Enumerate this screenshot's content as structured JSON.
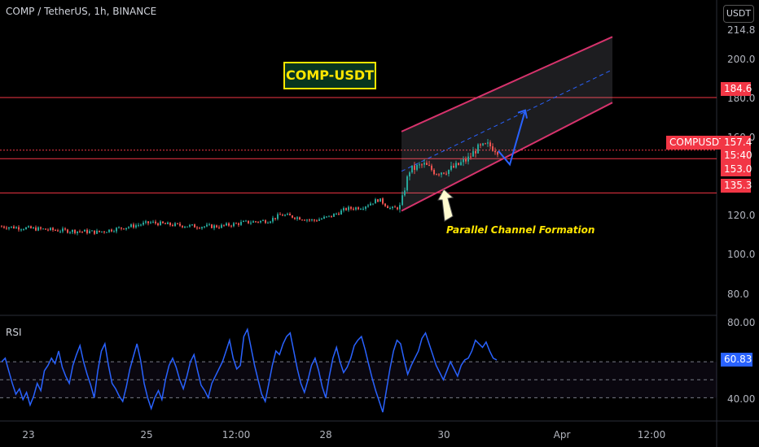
{
  "header": {
    "symbol_line": "COMP / TetherUS, 1h, BINANCE",
    "currency": "USDT"
  },
  "chart_title": "COMP-USDT",
  "annotation": "Parallel Channel Formation",
  "price_axis": {
    "ticks": [
      "214.8",
      "200.0",
      "180.0",
      "160.0",
      "120.0",
      "100.0",
      "80.0"
    ]
  },
  "price_badges": {
    "resistance": "184.6",
    "last": "157.4",
    "symbol": "COMPUSDT",
    "countdown": "15:40",
    "support1": "153.0",
    "support2": "135.3"
  },
  "rsi": {
    "label": "RSI",
    "value": "60.83",
    "ticks": [
      "80.00",
      "40.00"
    ]
  },
  "time_axis": [
    "23",
    "25",
    "12:00",
    "28",
    "30",
    "Apr",
    "12:00"
  ],
  "colors": {
    "up": "#26a69a",
    "down": "#ef5350",
    "rsi": "#2962ff",
    "level": "#f23645",
    "channel": "#d6336c",
    "title_text": "#ffe600"
  },
  "chart_data": [
    {
      "type": "candlestick",
      "title": "COMP / TetherUS, 1h, BINANCE",
      "ylabel": "USDT",
      "ylim": [
        72,
        222
      ],
      "x": [
        "23",
        "25",
        "12:00",
        "28",
        "30",
        "Apr",
        "12:00"
      ],
      "levels": [
        184.6,
        157.4,
        153.0,
        135.3
      ],
      "close_path": [
        [
          0,
          118
        ],
        [
          70,
          116
        ],
        [
          120,
          115
        ],
        [
          160,
          118
        ],
        [
          185,
          120
        ],
        [
          205,
          119
        ],
        [
          240,
          118
        ],
        [
          270,
          118
        ],
        [
          300,
          120
        ],
        [
          330,
          121
        ],
        [
          345,
          124
        ],
        [
          360,
          123
        ],
        [
          385,
          121
        ],
        [
          405,
          123
        ],
        [
          425,
          127
        ],
        [
          445,
          128
        ],
        [
          465,
          132
        ],
        [
          480,
          127
        ],
        [
          492,
          128
        ],
        [
          497,
          138
        ],
        [
          503,
          147
        ],
        [
          520,
          150
        ],
        [
          535,
          146
        ],
        [
          550,
          147
        ],
        [
          560,
          149
        ],
        [
          575,
          153
        ],
        [
          585,
          158
        ],
        [
          600,
          160
        ],
        [
          612,
          157
        ]
      ],
      "projection": {
        "from": [
          626,
          150
        ],
        "to": [
          645,
          178
        ]
      }
    },
    {
      "type": "line",
      "title": "RSI",
      "ylim": [
        28,
        84
      ],
      "levels": [
        60,
        50,
        40
      ],
      "values": [
        60,
        62,
        55,
        48,
        42,
        45,
        39,
        43,
        36,
        41,
        48,
        44,
        55,
        58,
        62,
        59,
        66,
        57,
        52,
        48,
        58,
        64,
        69,
        60,
        53,
        47,
        40,
        55,
        66,
        70,
        58,
        48,
        45,
        41,
        38,
        46,
        56,
        63,
        70,
        61,
        48,
        40,
        34,
        40,
        44,
        39,
        50,
        58,
        62,
        57,
        50,
        45,
        52,
        60,
        64,
        55,
        47,
        44,
        40,
        48,
        52,
        56,
        60,
        66,
        72,
        62,
        56,
        58,
        74,
        78,
        68,
        58,
        50,
        42,
        38,
        48,
        58,
        66,
        64,
        70,
        74,
        76,
        66,
        56,
        48,
        43,
        50,
        58,
        62,
        55,
        46,
        40,
        52,
        62,
        68,
        60,
        54,
        57,
        62,
        69,
        72,
        74,
        67,
        59,
        51,
        44,
        38,
        32,
        44,
        56,
        66,
        72,
        70,
        61,
        53,
        58,
        62,
        66,
        73,
        76,
        70,
        64,
        58,
        54,
        50,
        55,
        60,
        56,
        52,
        58,
        61,
        62,
        66,
        72,
        70,
        68,
        71,
        66,
        62,
        61
      ]
    }
  ]
}
